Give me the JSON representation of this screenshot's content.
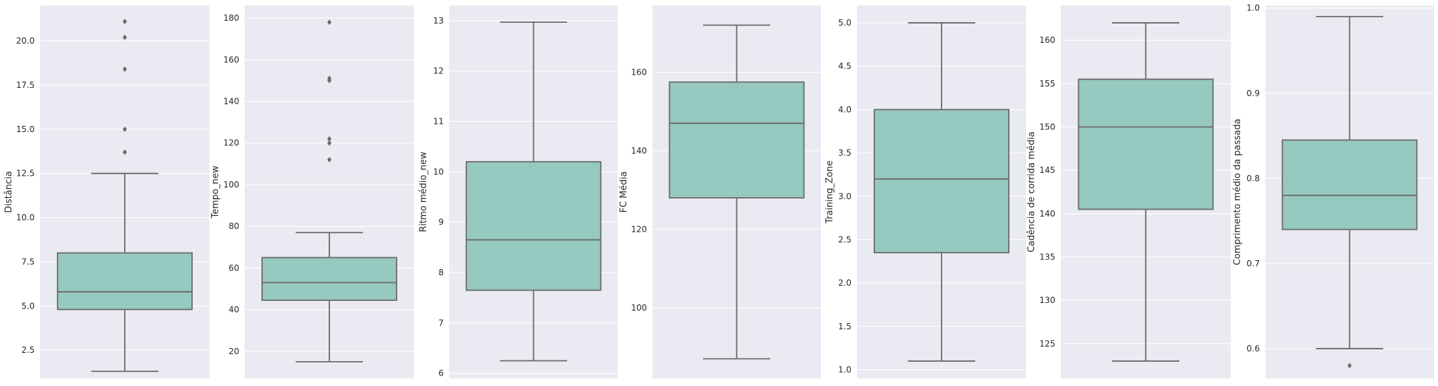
{
  "chart_data": [
    {
      "type": "box",
      "ylabel": "Distância",
      "ylim": [
        0.9,
        22.0
      ],
      "yticks": [
        2.5,
        5.0,
        7.5,
        10.0,
        12.5,
        15.0,
        17.5,
        20.0
      ],
      "ytick_labels": [
        "2.5",
        "5.0",
        "7.5",
        "10.0",
        "12.5",
        "15.0",
        "17.5",
        "20.0"
      ],
      "whisker_low": 1.3,
      "q1": 4.8,
      "median": 5.8,
      "q3": 8.0,
      "whisker_high": 12.5,
      "outliers": [
        13.7,
        15.0,
        18.4,
        20.2,
        21.1
      ],
      "grid": true
    },
    {
      "type": "box",
      "ylabel": "Tempo_new",
      "ylim": [
        7,
        186
      ],
      "yticks": [
        20,
        40,
        60,
        80,
        100,
        120,
        140,
        160,
        180
      ],
      "ytick_labels": [
        "20",
        "40",
        "60",
        "80",
        "100",
        "120",
        "140",
        "160",
        "180"
      ],
      "whisker_low": 15,
      "q1": 44.5,
      "median": 53,
      "q3": 65,
      "whisker_high": 77,
      "outliers": [
        112,
        120,
        122,
        150,
        151,
        178
      ],
      "grid": true
    },
    {
      "type": "box",
      "ylabel": "Ritmo médio_new",
      "ylim": [
        5.9,
        13.3
      ],
      "yticks": [
        6,
        7,
        8,
        9,
        10,
        11,
        12,
        13
      ],
      "ytick_labels": [
        "6",
        "7",
        "8",
        "9",
        "10",
        "11",
        "12",
        "13"
      ],
      "whisker_low": 6.25,
      "q1": 7.65,
      "median": 8.65,
      "q3": 10.2,
      "whisker_high": 12.97,
      "outliers": [],
      "grid": true
    },
    {
      "type": "box",
      "ylabel": "FC Média",
      "ylim": [
        82,
        177
      ],
      "yticks": [
        100,
        120,
        140,
        160
      ],
      "ytick_labels": [
        "100",
        "120",
        "140",
        "160"
      ],
      "whisker_low": 87,
      "q1": 128,
      "median": 147,
      "q3": 157.5,
      "whisker_high": 172,
      "outliers": [],
      "grid": true
    },
    {
      "type": "box",
      "ylabel": "Training_Zone",
      "ylim": [
        0.9,
        5.2
      ],
      "yticks": [
        1.0,
        1.5,
        2.0,
        2.5,
        3.0,
        3.5,
        4.0,
        4.5,
        5.0
      ],
      "ytick_labels": [
        "1.0",
        "1.5",
        "2.0",
        "2.5",
        "3.0",
        "3.5",
        "4.0",
        "4.5",
        "5.0"
      ],
      "whisker_low": 1.1,
      "q1": 2.35,
      "median": 3.2,
      "q3": 4.0,
      "whisker_high": 5.0,
      "outliers": [],
      "grid": true
    },
    {
      "type": "box",
      "ylabel": "Cadência de corrida média",
      "ylim": [
        121,
        164
      ],
      "yticks": [
        125,
        130,
        135,
        140,
        145,
        150,
        155,
        160
      ],
      "ytick_labels": [
        "125",
        "130",
        "135",
        "140",
        "145",
        "150",
        "155",
        "160"
      ],
      "whisker_low": 123,
      "q1": 140.5,
      "median": 150,
      "q3": 155.5,
      "whisker_high": 162,
      "outliers": [],
      "grid": true
    },
    {
      "type": "box",
      "ylabel": "Comprimento médio da passada",
      "ylim": [
        0.565,
        1.003
      ],
      "yticks": [
        0.6,
        0.7,
        0.8,
        0.9,
        1.0
      ],
      "ytick_labels": [
        "0.6",
        "0.7",
        "0.8",
        "0.9",
        "1.0"
      ],
      "whisker_low": 0.6,
      "q1": 0.74,
      "median": 0.78,
      "q3": 0.845,
      "whisker_high": 0.99,
      "outliers": [
        0.58
      ],
      "grid": true
    }
  ],
  "colors": {
    "background": "#ffffff",
    "panel": "#eaeaf2",
    "grid": "#ffffff",
    "box_fill": "#96c9bf",
    "line": "#696969",
    "text": "#262626"
  }
}
